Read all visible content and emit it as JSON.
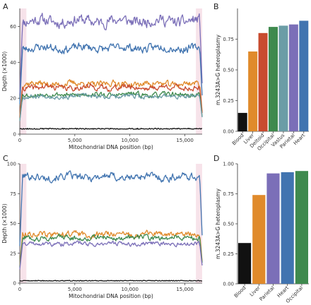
{
  "panels": {
    "A": {
      "letter": "A",
      "chart_data": {
        "type": "line",
        "title": "",
        "xlabel": "Mitochondrial DNA position (bp)",
        "ylabel": "Depth (×1000)",
        "xlim": [
          0,
          16569
        ],
        "ylim": [
          0,
          70
        ],
        "xticks": [
          0,
          5000,
          10000,
          15000
        ],
        "xtick_labels": [
          "0",
          "5,000",
          "10,000",
          "15,000"
        ],
        "yticks": [
          0,
          20,
          40,
          60
        ],
        "ytick_labels": [
          "0",
          "20",
          "40",
          "60"
        ],
        "shaded_regions": [
          [
            0,
            600
          ],
          [
            16000,
            16569
          ]
        ],
        "series": [
          {
            "color": "#7b6fb8",
            "level": 63,
            "amp": 2.5,
            "seed": 11
          },
          {
            "color": "#4174b0",
            "level": 48,
            "amp": 1.8,
            "seed": 23
          },
          {
            "color": "#e08a2b",
            "level": 28,
            "amp": 1.4,
            "seed": 37
          },
          {
            "color": "#c84b2f",
            "level": 26,
            "amp": 1.3,
            "seed": 41
          },
          {
            "color": "#3f8a4e",
            "level": 22,
            "amp": 1.1,
            "seed": 53
          },
          {
            "color": "#6b9da6",
            "level": 21,
            "amp": 1.0,
            "seed": 67
          },
          {
            "color": "#111111",
            "level": 3,
            "amp": 0.3,
            "seed": 79
          }
        ]
      }
    },
    "B": {
      "letter": "B",
      "chart_data": {
        "type": "bar",
        "title": "",
        "xlabel": "",
        "ylabel": "m.3243A>G heteroplasmy",
        "ylim": [
          0,
          1
        ],
        "yticks": [
          0,
          0.25,
          0.5,
          0.75
        ],
        "ytick_labels": [
          "0.00",
          "0.25",
          "0.50",
          "0.75"
        ],
        "categories": [
          "Blood",
          "Liver",
          "Deltoid",
          "Occipital",
          "Vastus",
          "Parietal",
          "Heart"
        ],
        "values": [
          0.15,
          0.65,
          0.8,
          0.85,
          0.86,
          0.87,
          0.9
        ],
        "colors": [
          "#111111",
          "#e08a2b",
          "#c84b2f",
          "#3f8a4e",
          "#6b9da6",
          "#7b6fb8",
          "#4174b0"
        ]
      }
    },
    "C": {
      "letter": "C",
      "chart_data": {
        "type": "line",
        "title": "",
        "xlabel": "Mitochondrial DNA position (bp)",
        "ylabel": "Depth (×1000)",
        "xlim": [
          0,
          16569
        ],
        "ylim": [
          0,
          100
        ],
        "xticks": [
          0,
          5000,
          10000,
          15000
        ],
        "xtick_labels": [
          "0",
          "5,000",
          "10,000",
          "15,000"
        ],
        "yticks": [
          0,
          25,
          50,
          75,
          100
        ],
        "ytick_labels": [
          "0",
          "25",
          "50",
          "75",
          "100"
        ],
        "shaded_regions": [
          [
            0,
            600
          ],
          [
            16000,
            16569
          ]
        ],
        "series": [
          {
            "color": "#4174b0",
            "level": 89,
            "amp": 2.6,
            "seed": 101
          },
          {
            "color": "#e08a2b",
            "level": 41,
            "amp": 2.0,
            "seed": 113
          },
          {
            "color": "#3f8a4e",
            "level": 38,
            "amp": 1.8,
            "seed": 127
          },
          {
            "color": "#7b6fb8",
            "level": 33,
            "amp": 1.4,
            "seed": 131
          },
          {
            "color": "#111111",
            "level": 2,
            "amp": 0.3,
            "seed": 149
          }
        ]
      }
    },
    "D": {
      "letter": "D",
      "chart_data": {
        "type": "bar",
        "title": "",
        "xlabel": "",
        "ylabel": "m.3243A>G heteroplasmy",
        "ylim": [
          0,
          1
        ],
        "yticks": [
          0,
          0.25,
          0.5,
          0.75,
          1.0
        ],
        "ytick_labels": [
          "0.00",
          "0.25",
          "0.50",
          "0.75",
          "1.00"
        ],
        "categories": [
          "Blood",
          "Liver",
          "Parietal",
          "Heart",
          "Occipital"
        ],
        "values": [
          0.34,
          0.74,
          0.92,
          0.93,
          0.94
        ],
        "colors": [
          "#111111",
          "#e08a2b",
          "#7b6fb8",
          "#4174b0",
          "#3f8a4e"
        ]
      }
    }
  }
}
